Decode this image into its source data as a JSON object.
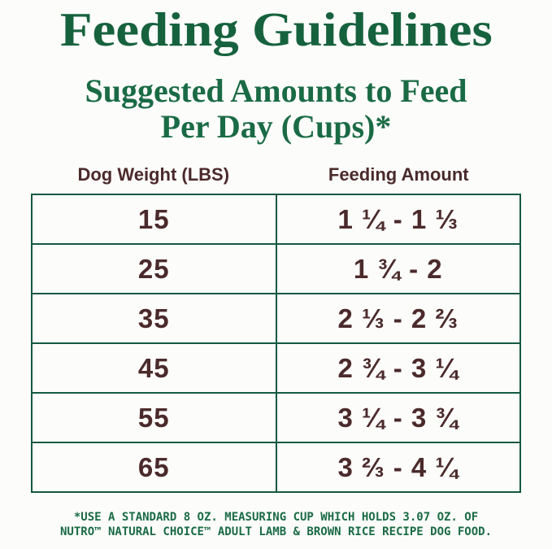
{
  "title": "Feeding Guidelines",
  "subtitle_line1": "Suggested Amounts to Feed",
  "subtitle_line2": "Per Day (Cups)*",
  "table": {
    "columns": [
      "Dog Weight (LBS)",
      "Feeding Amount"
    ],
    "rows": [
      {
        "weight": "15",
        "amount": "1 ¼ - 1 ⅓"
      },
      {
        "weight": "25",
        "amount": "1 ¾ - 2"
      },
      {
        "weight": "35",
        "amount": "2 ⅓ - 2 ⅔"
      },
      {
        "weight": "45",
        "amount": "2 ¾ - 3 ¼"
      },
      {
        "weight": "55",
        "amount": "3 ¼ - 3 ¾"
      },
      {
        "weight": "65",
        "amount": "3 ⅔ - 4 ¼"
      }
    ]
  },
  "footnote_line1": "*USE A STANDARD 8 OZ. MEASURING CUP WHICH HOLDS 3.07 OZ. OF",
  "footnote_line2": "NUTRO™ NATURAL CHOICE™ ADULT LAMB & BROWN RICE RECIPE DOG FOOD.",
  "colors": {
    "title_green": "#17623E",
    "subtitle_green": "#1A6B45",
    "border_green": "#155843",
    "text_brown": "#4B2A2B",
    "background": "#FCFCFA"
  },
  "chart_data": {
    "type": "table",
    "title": "Feeding Guidelines",
    "subtitle": "Suggested Amounts to Feed Per Day (Cups)*",
    "columns": [
      "Dog Weight (LBS)",
      "Feeding Amount"
    ],
    "rows": [
      [
        "15",
        "1 ¼ - 1 ⅓"
      ],
      [
        "25",
        "1 ¾ - 2"
      ],
      [
        "35",
        "2 ⅓ - 2 ⅔"
      ],
      [
        "45",
        "2 ¾ - 3 ¼"
      ],
      [
        "55",
        "3 ¼ - 3 ¾"
      ],
      [
        "65",
        "3 ⅔ - 4 ¼"
      ]
    ],
    "weights_lbs": [
      15,
      25,
      35,
      45,
      55,
      65
    ],
    "amount_min_cups": [
      1.25,
      1.75,
      2.33,
      2.75,
      3.25,
      3.67
    ],
    "amount_max_cups": [
      1.33,
      2,
      2.67,
      3.25,
      3.75,
      4.25
    ],
    "footnote": "*USE A STANDARD 8 OZ. MEASURING CUP WHICH HOLDS 3.07 OZ. OF NUTRO™ NATURAL CHOICE™ ADULT LAMB & BROWN RICE RECIPE DOG FOOD."
  }
}
